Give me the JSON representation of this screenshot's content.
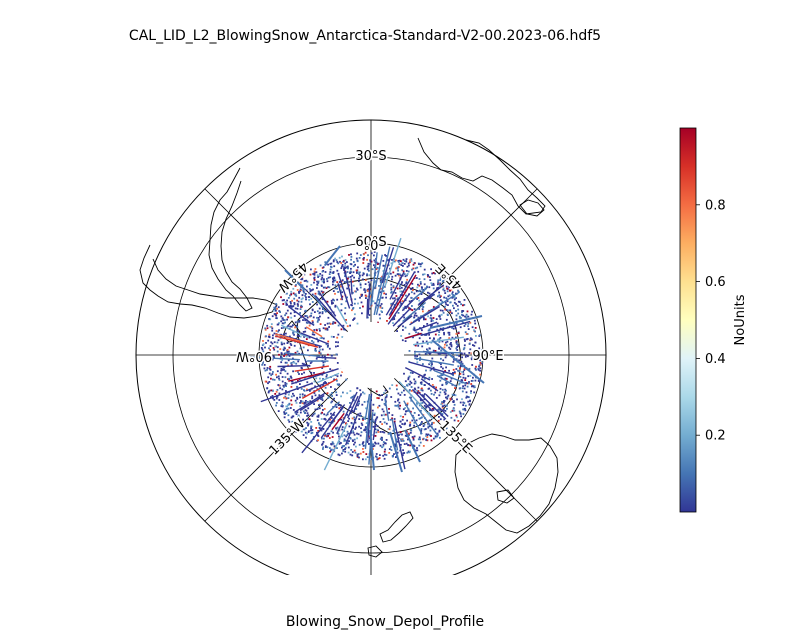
{
  "title": "CAL_LID_L2_BlowingSnow_Antarctica-Standard-V2-00.2023-06.hdf5",
  "xlabel": "Blowing_Snow_Depol_Profile",
  "map": {
    "projection": "south-polar-stereographic",
    "lat_labels": [
      "30°S",
      "60°S"
    ],
    "lon_labels": [
      "0°",
      "45°E",
      "90°E",
      "135°E",
      "90°W",
      "45°W",
      "135°W"
    ]
  },
  "colorbar": {
    "label": "NoUnits",
    "cmap": "RdYlBu_r",
    "min": 0.0,
    "max": 1.0,
    "ticks": [
      0.2,
      0.4,
      0.6,
      0.8
    ],
    "tick_labels": [
      "0.2",
      "0.4",
      "0.6",
      "0.8"
    ],
    "colors": [
      "#313695",
      "#4575b4",
      "#74add1",
      "#abd9e9",
      "#e0f3f8",
      "#ffffbf",
      "#fee090",
      "#fdae61",
      "#f46d43",
      "#d73027",
      "#a50026"
    ]
  }
}
